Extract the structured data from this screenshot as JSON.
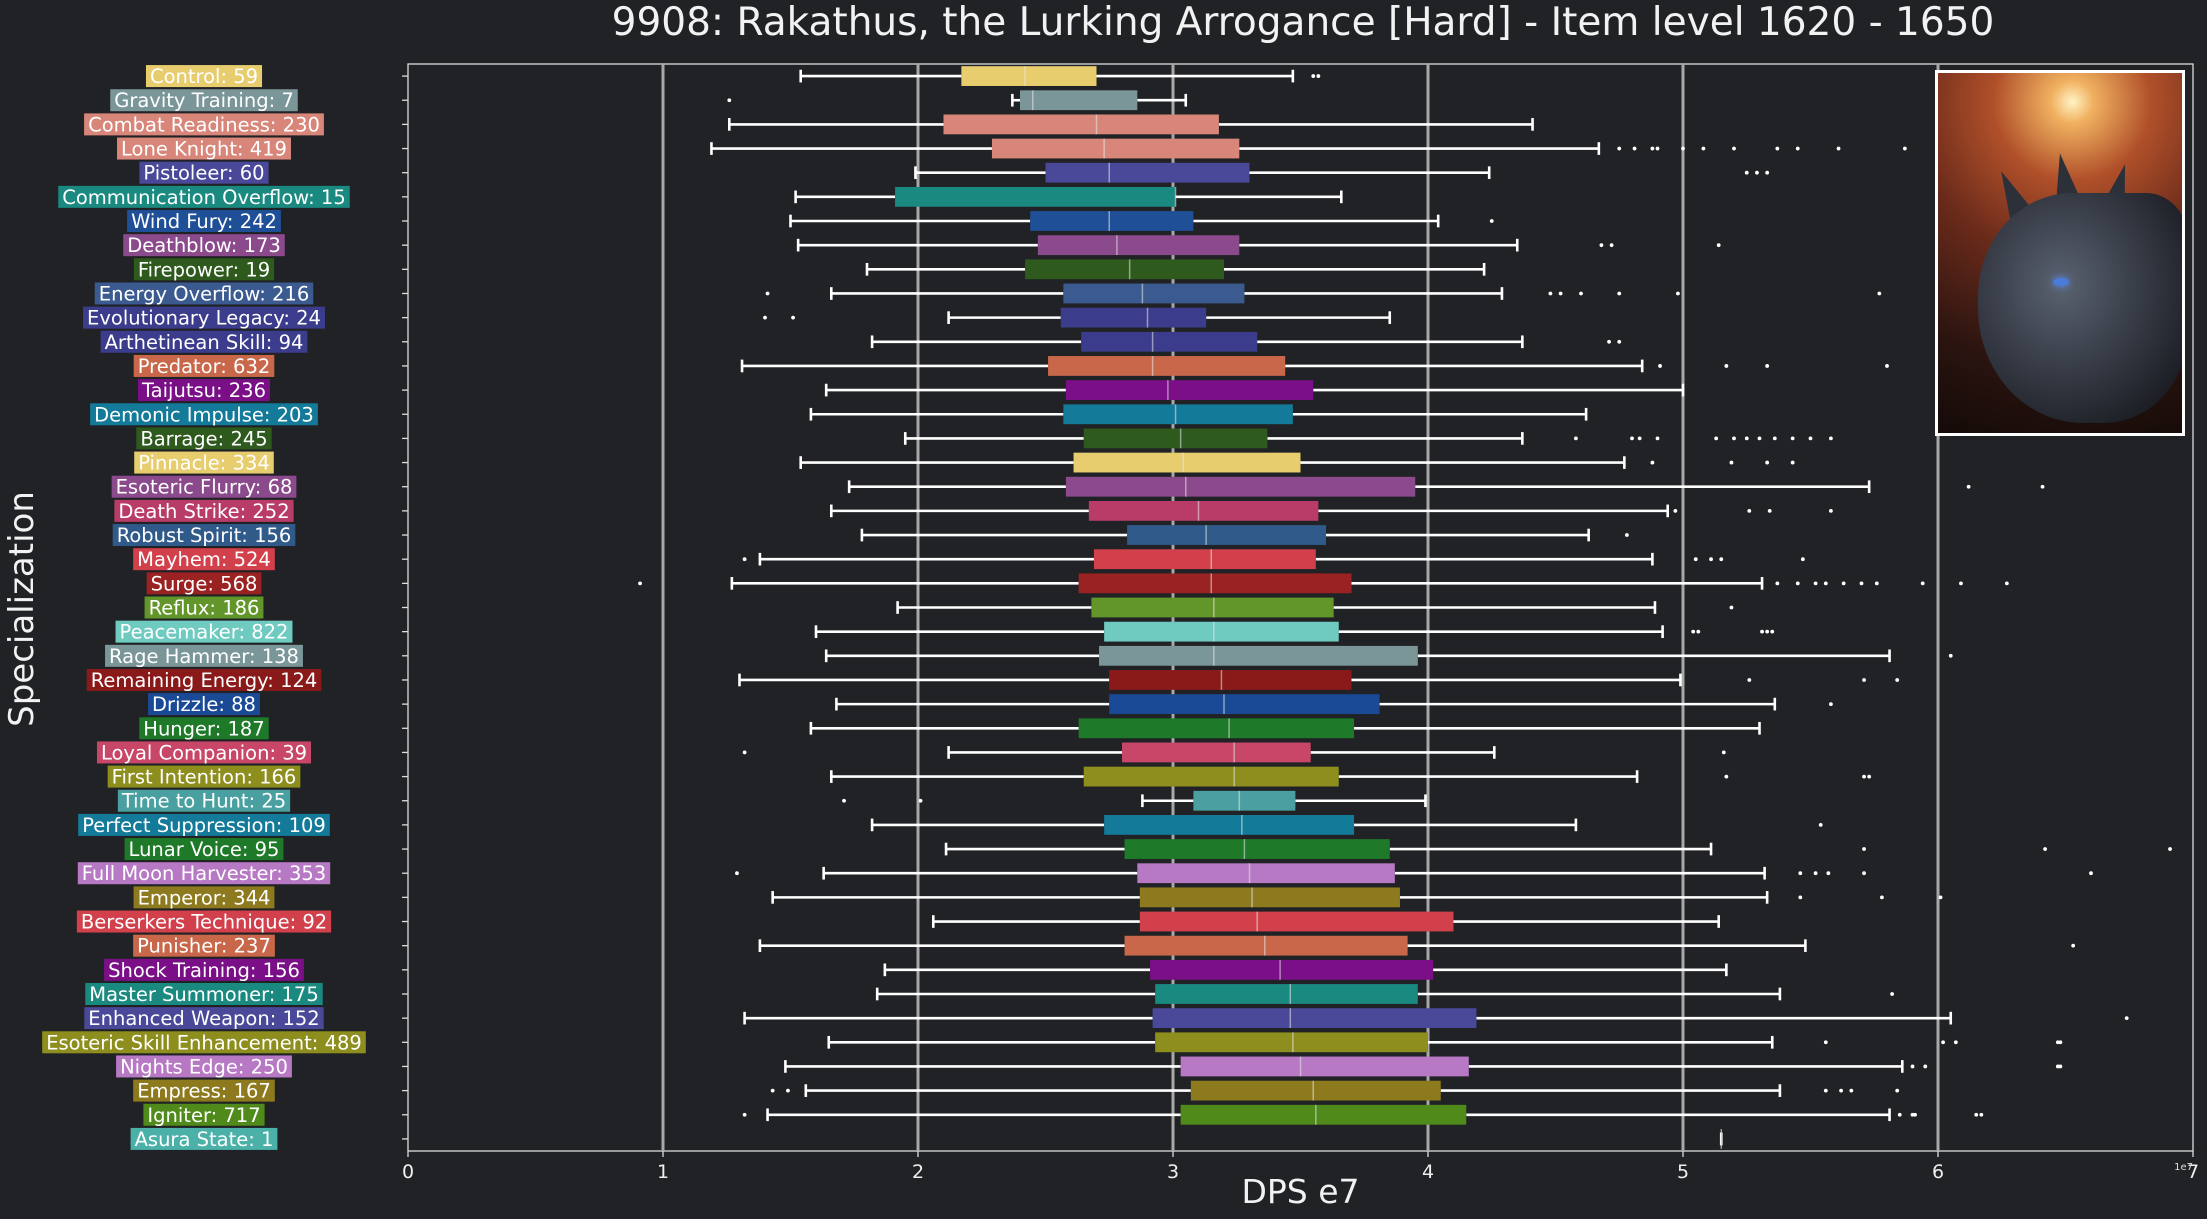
{
  "colors": {
    "background": "#202225",
    "axis": "#dddddd",
    "gridline": "#a8a8a8",
    "whisker": "#ffffff"
  },
  "chart_data": {
    "type": "box",
    "title": "9908: Rakathus, the Lurking Arrogance [Hard] - Item level 1620 - 1650",
    "xlabel": "DPS e7",
    "ylabel": "Specialization",
    "xlim": [
      0,
      7
    ],
    "xticks": [
      "0",
      "1",
      "2",
      "3",
      "4",
      "5",
      "6",
      "7"
    ],
    "offset_text": "1e7",
    "grid": "vertical",
    "image": "boss-portrait",
    "series": [
      {
        "label": "Control: 59",
        "color": "#e8cd6f",
        "whislo": 1.54,
        "q1": 2.17,
        "med": 2.42,
        "q3": 2.7,
        "whishi": 3.47,
        "fliers": [
          3.55,
          3.57
        ]
      },
      {
        "label": "Gravity Training: 7",
        "color": "#7b9699",
        "whislo": 2.37,
        "q1": 2.4,
        "med": 2.45,
        "q3": 2.86,
        "whishi": 3.05,
        "fliers": [
          1.26
        ]
      },
      {
        "label": "Combat Readiness: 230",
        "color": "#d8867a",
        "whislo": 1.26,
        "q1": 2.1,
        "med": 2.7,
        "q3": 3.18,
        "whishi": 4.41,
        "fliers": []
      },
      {
        "label": "Lone Knight: 419",
        "color": "#d8867a",
        "whislo": 1.19,
        "q1": 2.29,
        "med": 2.73,
        "q3": 3.26,
        "whishi": 4.67,
        "fliers": [
          4.75,
          4.81,
          4.88,
          4.9,
          5.0,
          5.08,
          5.2,
          5.37,
          5.45,
          5.61,
          5.87
        ]
      },
      {
        "label": "Pistoleer: 60",
        "color": "#4a4898",
        "whislo": 1.99,
        "q1": 2.5,
        "med": 2.75,
        "q3": 3.3,
        "whishi": 4.24,
        "fliers": [
          5.25,
          5.29,
          5.33
        ]
      },
      {
        "label": "Communication Overflow: 15",
        "color": "#1a8a80",
        "whislo": 1.52,
        "q1": 1.91,
        "med": 3.01,
        "q3": 3.01,
        "whishi": 3.66,
        "fliers": []
      },
      {
        "label": "Wind Fury: 242",
        "color": "#1f4f96",
        "whislo": 1.5,
        "q1": 2.44,
        "med": 2.75,
        "q3": 3.08,
        "whishi": 4.04,
        "fliers": [
          4.25
        ]
      },
      {
        "label": "Deathblow: 173",
        "color": "#8a4a8c",
        "whislo": 1.53,
        "q1": 2.47,
        "med": 2.78,
        "q3": 3.26,
        "whishi": 4.35,
        "fliers": [
          4.68,
          4.72,
          5.14
        ]
      },
      {
        "label": "Firepower: 19",
        "color": "#2e5a1e",
        "whislo": 1.8,
        "q1": 2.42,
        "med": 2.83,
        "q3": 3.2,
        "whishi": 4.22,
        "fliers": []
      },
      {
        "label": "Energy Overflow: 216",
        "color": "#3a5a90",
        "whislo": 1.66,
        "q1": 2.57,
        "med": 2.88,
        "q3": 3.28,
        "whishi": 4.29,
        "fliers": [
          1.41,
          4.48,
          4.52,
          4.6,
          4.75,
          4.98,
          5.77
        ]
      },
      {
        "label": "Evolutionary Legacy: 24",
        "color": "#3c3c8c",
        "whislo": 2.12,
        "q1": 2.56,
        "med": 2.9,
        "q3": 3.13,
        "whishi": 3.85,
        "fliers": [
          1.4,
          1.51
        ]
      },
      {
        "label": "Arthetinean Skill: 94",
        "color": "#3c3c8c",
        "whislo": 1.82,
        "q1": 2.64,
        "med": 2.92,
        "q3": 3.33,
        "whishi": 4.37,
        "fliers": [
          4.71,
          4.75
        ]
      },
      {
        "label": "Predator: 632",
        "color": "#c9674a",
        "whislo": 1.31,
        "q1": 2.51,
        "med": 2.92,
        "q3": 3.44,
        "whishi": 4.84,
        "fliers": [
          4.91,
          5.17,
          5.33,
          5.8
        ]
      },
      {
        "label": "Taijutsu: 236",
        "color": "#7a0f88",
        "whislo": 1.64,
        "q1": 2.58,
        "med": 2.98,
        "q3": 3.55,
        "whishi": 5.0,
        "fliers": []
      },
      {
        "label": "Demonic Impulse: 203",
        "color": "#137a99",
        "whislo": 1.58,
        "q1": 2.57,
        "med": 3.01,
        "q3": 3.47,
        "whishi": 4.62,
        "fliers": []
      },
      {
        "label": "Barrage: 245",
        "color": "#2e5a1e",
        "whislo": 1.95,
        "q1": 2.65,
        "med": 3.03,
        "q3": 3.37,
        "whishi": 4.37,
        "fliers": [
          4.58,
          4.8,
          4.83,
          4.9,
          5.13,
          5.2,
          5.25,
          5.3,
          5.36,
          5.43,
          5.5,
          5.58
        ]
      },
      {
        "label": "Pinnacle: 334",
        "color": "#e8cd6f",
        "whislo": 1.54,
        "q1": 2.61,
        "med": 3.04,
        "q3": 3.5,
        "whishi": 4.77,
        "fliers": [
          4.88,
          5.19,
          5.33,
          5.43
        ]
      },
      {
        "label": "Esoteric Flurry: 68",
        "color": "#8a4a8c",
        "whislo": 1.73,
        "q1": 2.58,
        "med": 3.05,
        "q3": 3.95,
        "whishi": 5.73,
        "fliers": [
          6.12,
          6.41
        ]
      },
      {
        "label": "Death Strike: 252",
        "color": "#b83c67",
        "whislo": 1.66,
        "q1": 2.67,
        "med": 3.1,
        "q3": 3.57,
        "whishi": 4.94,
        "fliers": [
          4.97,
          5.26,
          5.34,
          5.58
        ]
      },
      {
        "label": "Robust Spirit: 156",
        "color": "#2f5a8a",
        "whislo": 1.78,
        "q1": 2.82,
        "med": 3.13,
        "q3": 3.6,
        "whishi": 4.63,
        "fliers": [
          4.78
        ]
      },
      {
        "label": "Mayhem: 524",
        "color": "#d2404c",
        "whislo": 1.38,
        "q1": 2.69,
        "med": 3.15,
        "q3": 3.56,
        "whishi": 4.88,
        "fliers": [
          1.32,
          5.05,
          5.11,
          5.15,
          5.47
        ]
      },
      {
        "label": "Surge: 568",
        "color": "#9a2222",
        "whislo": 1.27,
        "q1": 2.63,
        "med": 3.15,
        "q3": 3.7,
        "whishi": 5.31,
        "fliers": [
          0.91,
          5.37,
          5.45,
          5.52,
          5.56,
          5.63,
          5.7,
          5.76,
          5.94,
          6.09,
          6.27
        ]
      },
      {
        "label": "Reflux: 186",
        "color": "#62962a",
        "whislo": 1.92,
        "q1": 2.68,
        "med": 3.16,
        "q3": 3.63,
        "whishi": 4.89,
        "fliers": [
          5.19
        ]
      },
      {
        "label": "Peacemaker: 822",
        "color": "#6fcac0",
        "whislo": 1.6,
        "q1": 2.73,
        "med": 3.16,
        "q3": 3.65,
        "whishi": 4.92,
        "fliers": [
          5.04,
          5.06,
          5.31,
          5.33,
          5.35
        ]
      },
      {
        "label": "Rage Hammer: 138",
        "color": "#7b9699",
        "whislo": 1.64,
        "q1": 2.71,
        "med": 3.16,
        "q3": 3.96,
        "whishi": 5.81,
        "fliers": [
          6.05
        ]
      },
      {
        "label": "Remaining Energy: 124",
        "color": "#8a1a1a",
        "whislo": 1.3,
        "q1": 2.75,
        "med": 3.19,
        "q3": 3.7,
        "whishi": 4.99,
        "fliers": [
          5.26,
          5.71,
          5.84
        ]
      },
      {
        "label": "Drizzle: 88",
        "color": "#1a4a96",
        "whislo": 1.68,
        "q1": 2.75,
        "med": 3.2,
        "q3": 3.81,
        "whishi": 5.36,
        "fliers": [
          5.58
        ]
      },
      {
        "label": "Hunger: 187",
        "color": "#1e7a28",
        "whislo": 1.58,
        "q1": 2.63,
        "med": 3.22,
        "q3": 3.71,
        "whishi": 5.3,
        "fliers": []
      },
      {
        "label": "Loyal Companion: 39",
        "color": "#c84668",
        "whislo": 2.12,
        "q1": 2.8,
        "med": 3.24,
        "q3": 3.54,
        "whishi": 4.26,
        "fliers": [
          1.32,
          5.16
        ]
      },
      {
        "label": "First Intention: 166",
        "color": "#8e8e1e",
        "whislo": 1.66,
        "q1": 2.65,
        "med": 3.24,
        "q3": 3.65,
        "whishi": 4.82,
        "fliers": [
          5.17,
          5.71,
          5.73
        ]
      },
      {
        "label": "Time to Hunt: 25",
        "color": "#4aa0a0",
        "whislo": 2.88,
        "q1": 3.08,
        "med": 3.26,
        "q3": 3.48,
        "whishi": 3.99,
        "fliers": [
          1.71,
          2.01
        ]
      },
      {
        "label": "Perfect Suppression: 109",
        "color": "#137a99",
        "whislo": 1.82,
        "q1": 2.73,
        "med": 3.27,
        "q3": 3.71,
        "whishi": 4.58,
        "fliers": [
          5.54
        ]
      },
      {
        "label": "Lunar Voice: 95",
        "color": "#1e7a28",
        "whislo": 2.11,
        "q1": 2.81,
        "med": 3.28,
        "q3": 3.85,
        "whishi": 5.11,
        "fliers": [
          5.71,
          6.42,
          6.91
        ]
      },
      {
        "label": "Full Moon Harvester: 353",
        "color": "#b778c4",
        "whislo": 1.63,
        "q1": 2.86,
        "med": 3.3,
        "q3": 3.87,
        "whishi": 5.32,
        "fliers": [
          1.29,
          5.46,
          5.52,
          5.57,
          5.71,
          6.6
        ]
      },
      {
        "label": "Emperor: 344",
        "color": "#8e7a1e",
        "whislo": 1.43,
        "q1": 2.87,
        "med": 3.31,
        "q3": 3.89,
        "whishi": 5.33,
        "fliers": [
          5.46,
          5.78,
          6.01
        ]
      },
      {
        "label": "Berserkers Technique: 92",
        "color": "#d2404c",
        "whislo": 2.06,
        "q1": 2.87,
        "med": 3.33,
        "q3": 4.1,
        "whishi": 5.14,
        "fliers": []
      },
      {
        "label": "Punisher: 237",
        "color": "#c9674a",
        "whislo": 1.38,
        "q1": 2.81,
        "med": 3.36,
        "q3": 3.92,
        "whishi": 5.48,
        "fliers": [
          6.53
        ]
      },
      {
        "label": "Shock Training: 156",
        "color": "#7a0f88",
        "whislo": 1.87,
        "q1": 2.91,
        "med": 3.42,
        "q3": 4.02,
        "whishi": 5.17,
        "fliers": []
      },
      {
        "label": "Master Summoner: 175",
        "color": "#1a8a80",
        "whislo": 1.84,
        "q1": 2.93,
        "med": 3.46,
        "q3": 3.96,
        "whishi": 5.38,
        "fliers": [
          5.82
        ]
      },
      {
        "label": "Enhanced Weapon: 152",
        "color": "#4a4898",
        "whislo": 1.32,
        "q1": 2.92,
        "med": 3.46,
        "q3": 4.19,
        "whishi": 6.05,
        "fliers": [
          6.74
        ]
      },
      {
        "label": "Esoteric Skill Enhancement: 489",
        "color": "#8e8e1e",
        "whislo": 1.65,
        "q1": 2.93,
        "med": 3.47,
        "q3": 4.0,
        "whishi": 5.35,
        "fliers": [
          5.56,
          6.02,
          6.07,
          6.47,
          6.48
        ]
      },
      {
        "label": "Nights Edge: 250",
        "color": "#b778c4",
        "whislo": 1.48,
        "q1": 3.03,
        "med": 3.5,
        "q3": 4.16,
        "whishi": 5.86,
        "fliers": [
          5.9,
          5.95,
          6.47,
          6.48
        ]
      },
      {
        "label": "Empress: 167",
        "color": "#8e7a1e",
        "whislo": 1.56,
        "q1": 3.07,
        "med": 3.55,
        "q3": 4.05,
        "whishi": 5.38,
        "fliers": [
          1.43,
          1.49,
          5.56,
          5.62,
          5.66,
          5.84
        ]
      },
      {
        "label": "Igniter: 717",
        "color": "#4f8a1a",
        "whislo": 1.41,
        "q1": 3.03,
        "med": 3.56,
        "q3": 4.15,
        "whishi": 5.81,
        "fliers": [
          1.32,
          5.85,
          5.9,
          5.91,
          6.15,
          6.17
        ]
      },
      {
        "label": "Asura State: 1",
        "color": "#4ab0a8",
        "whislo": 5.15,
        "q1": 5.15,
        "med": 5.15,
        "q3": 5.15,
        "whishi": 5.15,
        "fliers": []
      }
    ]
  }
}
